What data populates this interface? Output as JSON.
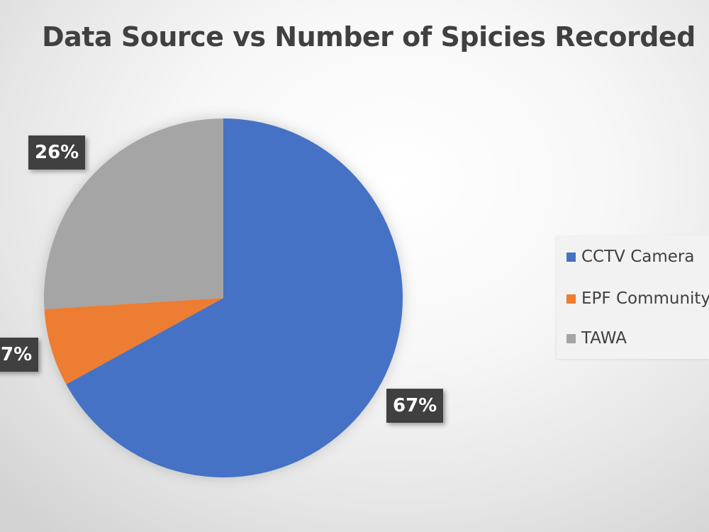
{
  "chart_data": {
    "type": "pie",
    "title": "Data Source vs Number of Spicies Recorded",
    "categories": [
      "CCTV Camera",
      "EPF Community",
      "TAWA"
    ],
    "values": [
      67,
      7,
      26
    ],
    "labels": [
      "67%",
      "7%",
      "26%"
    ],
    "colors": [
      "#4472C4",
      "#ED7D31",
      "#A5A5A5"
    ],
    "legend_position": "right"
  }
}
